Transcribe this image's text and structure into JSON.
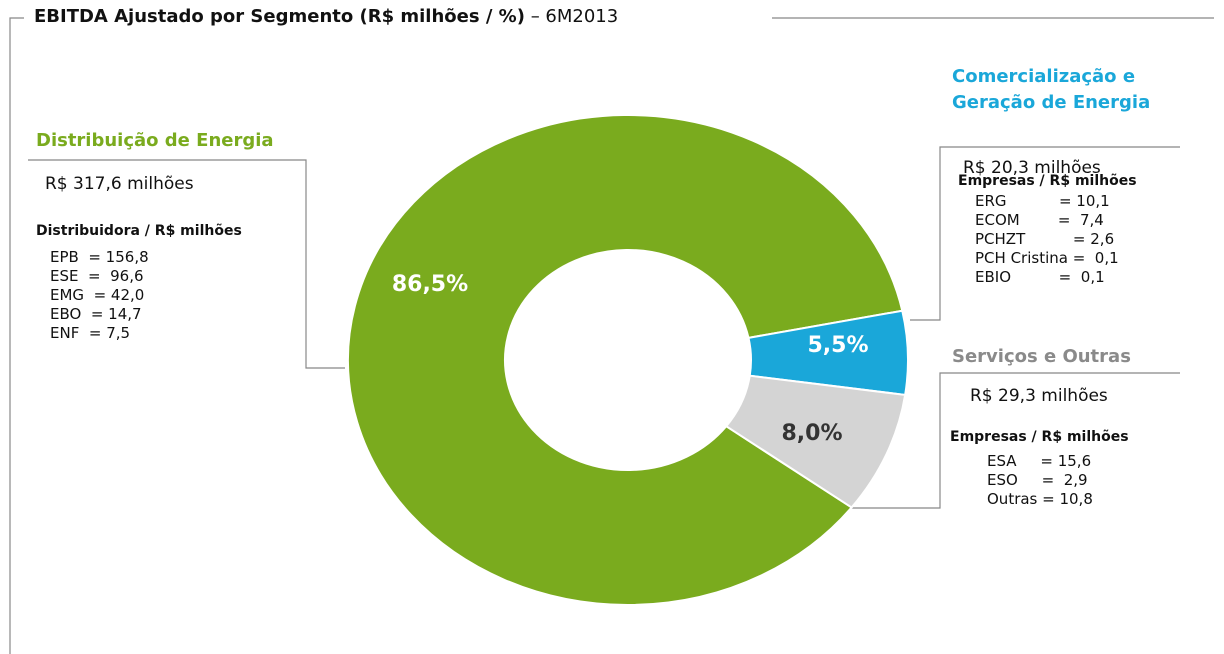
{
  "chart_data": {
    "type": "pie",
    "donut": true,
    "title": "EBITDA Ajustado por Segmento (R$ milhões / %)",
    "subtitle": "– 6M2013",
    "categories": [
      "Distribuição de Energia",
      "Comercialização e Geração de Energia",
      "Serviços e Outras"
    ],
    "values": [
      86.5,
      5.5,
      8.0
    ],
    "value_labels": [
      "86,5%",
      "5,5%",
      "8,0%"
    ],
    "colors": [
      "#7aab1e",
      "#1aa7d9",
      "#d4d4d4"
    ],
    "label_colors": [
      "#ffffff",
      "#ffffff",
      "#333333"
    ],
    "annotations": [
      {
        "total": "R$ 317,6 milhões",
        "header": "Distribuidora / R$ milhões",
        "items": [
          "EPB  = 156,8",
          "ESE  =  96,6",
          "EMG  = 42,0",
          "EBO  = 14,7",
          "ENF  = 7,5"
        ]
      },
      {
        "total": "R$ 20,3 milhões",
        "header": "Empresas / R$ milhões",
        "items": [
          "ERG           = 10,1",
          "ECOM        =  7,4",
          "PCHZT          = 2,6",
          "PCH Cristina =  0,1",
          "EBIO          =  0,1"
        ]
      },
      {
        "total": "R$ 29,3 milhões",
        "header": "Empresas / R$ milhões",
        "items": [
          "ESA     = 15,6",
          "ESO     =  2,9",
          "Outras = 10,8"
        ]
      }
    ]
  }
}
